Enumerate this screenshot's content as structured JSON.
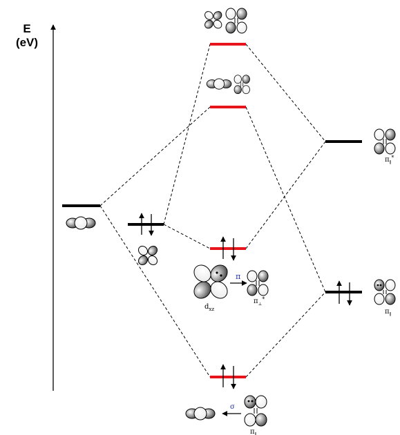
{
  "axis": {
    "label_line1": "E",
    "label_line2": "(eV)"
  },
  "labels": {
    "dxz": "d",
    "dxz_sub": "xz",
    "pi_arrow": "π",
    "sigma_arrow": "σ",
    "pi_star_center": "π",
    "pi_star_center_sub": "⊥",
    "pi_star_center_sup": "*",
    "pi_star_right": "π",
    "pi_star_right_sub": "∥",
    "pi_star_right_sup": "*",
    "pi_right": "π",
    "pi_right_sub": "∥",
    "pi_bottom": "π",
    "pi_bottom_sub": "∥"
  },
  "colors": {
    "complex_level": "#e8141b",
    "fragment_level": "#000000",
    "label_blue": "#1f2fa8",
    "lobe_dark": "#555555",
    "lobe_light": "#ffffff"
  },
  "electron_counts": {
    "left_dorbital_level": 2,
    "complex_pi_level": 2,
    "complex_sigma_level": 2,
    "right_pi_level": 2
  }
}
